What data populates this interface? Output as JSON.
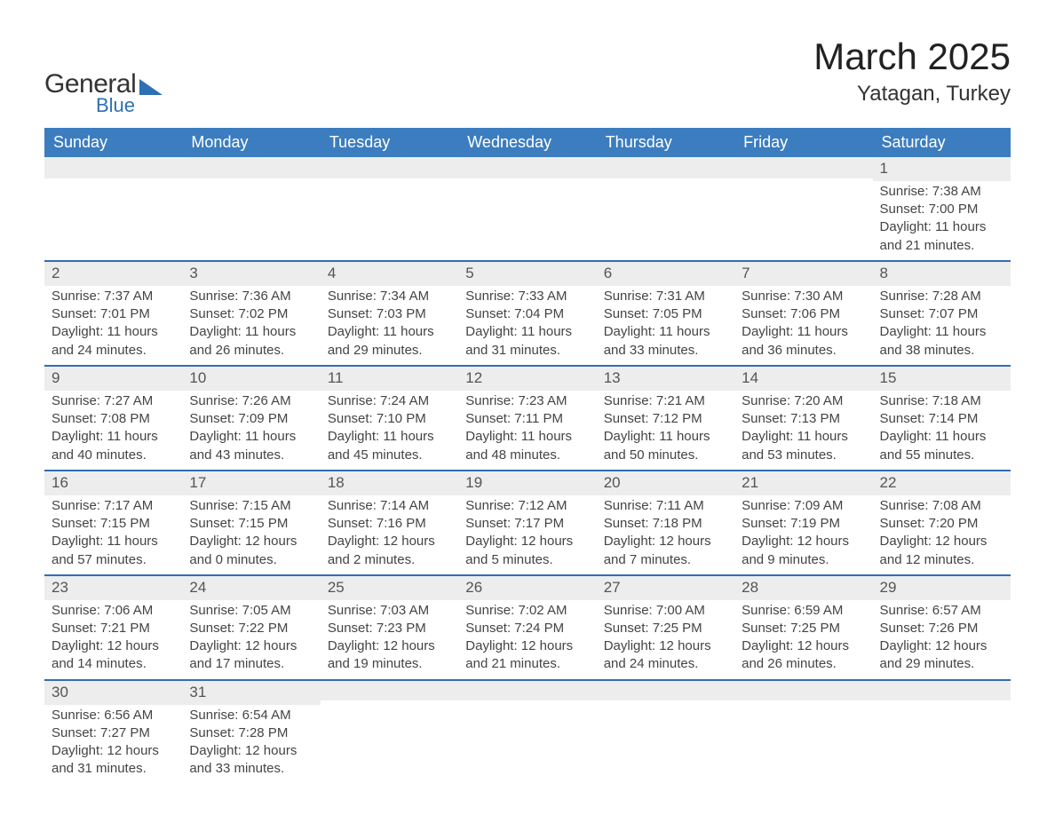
{
  "logo": {
    "text_main": "General",
    "text_sub": "Blue"
  },
  "title": "March 2025",
  "location": "Yatagan, Turkey",
  "colors": {
    "header_bg": "#3b7dbf",
    "accent": "#2f6fb3",
    "daybar_bg": "#ededed",
    "text": "#444444"
  },
  "day_headers": [
    "Sunday",
    "Monday",
    "Tuesday",
    "Wednesday",
    "Thursday",
    "Friday",
    "Saturday"
  ],
  "weeks": [
    [
      null,
      null,
      null,
      null,
      null,
      null,
      {
        "n": "1",
        "sunrise": "Sunrise: 7:38 AM",
        "sunset": "Sunset: 7:00 PM",
        "d1": "Daylight: 11 hours",
        "d2": "and 21 minutes."
      }
    ],
    [
      {
        "n": "2",
        "sunrise": "Sunrise: 7:37 AM",
        "sunset": "Sunset: 7:01 PM",
        "d1": "Daylight: 11 hours",
        "d2": "and 24 minutes."
      },
      {
        "n": "3",
        "sunrise": "Sunrise: 7:36 AM",
        "sunset": "Sunset: 7:02 PM",
        "d1": "Daylight: 11 hours",
        "d2": "and 26 minutes."
      },
      {
        "n": "4",
        "sunrise": "Sunrise: 7:34 AM",
        "sunset": "Sunset: 7:03 PM",
        "d1": "Daylight: 11 hours",
        "d2": "and 29 minutes."
      },
      {
        "n": "5",
        "sunrise": "Sunrise: 7:33 AM",
        "sunset": "Sunset: 7:04 PM",
        "d1": "Daylight: 11 hours",
        "d2": "and 31 minutes."
      },
      {
        "n": "6",
        "sunrise": "Sunrise: 7:31 AM",
        "sunset": "Sunset: 7:05 PM",
        "d1": "Daylight: 11 hours",
        "d2": "and 33 minutes."
      },
      {
        "n": "7",
        "sunrise": "Sunrise: 7:30 AM",
        "sunset": "Sunset: 7:06 PM",
        "d1": "Daylight: 11 hours",
        "d2": "and 36 minutes."
      },
      {
        "n": "8",
        "sunrise": "Sunrise: 7:28 AM",
        "sunset": "Sunset: 7:07 PM",
        "d1": "Daylight: 11 hours",
        "d2": "and 38 minutes."
      }
    ],
    [
      {
        "n": "9",
        "sunrise": "Sunrise: 7:27 AM",
        "sunset": "Sunset: 7:08 PM",
        "d1": "Daylight: 11 hours",
        "d2": "and 40 minutes."
      },
      {
        "n": "10",
        "sunrise": "Sunrise: 7:26 AM",
        "sunset": "Sunset: 7:09 PM",
        "d1": "Daylight: 11 hours",
        "d2": "and 43 minutes."
      },
      {
        "n": "11",
        "sunrise": "Sunrise: 7:24 AM",
        "sunset": "Sunset: 7:10 PM",
        "d1": "Daylight: 11 hours",
        "d2": "and 45 minutes."
      },
      {
        "n": "12",
        "sunrise": "Sunrise: 7:23 AM",
        "sunset": "Sunset: 7:11 PM",
        "d1": "Daylight: 11 hours",
        "d2": "and 48 minutes."
      },
      {
        "n": "13",
        "sunrise": "Sunrise: 7:21 AM",
        "sunset": "Sunset: 7:12 PM",
        "d1": "Daylight: 11 hours",
        "d2": "and 50 minutes."
      },
      {
        "n": "14",
        "sunrise": "Sunrise: 7:20 AM",
        "sunset": "Sunset: 7:13 PM",
        "d1": "Daylight: 11 hours",
        "d2": "and 53 minutes."
      },
      {
        "n": "15",
        "sunrise": "Sunrise: 7:18 AM",
        "sunset": "Sunset: 7:14 PM",
        "d1": "Daylight: 11 hours",
        "d2": "and 55 minutes."
      }
    ],
    [
      {
        "n": "16",
        "sunrise": "Sunrise: 7:17 AM",
        "sunset": "Sunset: 7:15 PM",
        "d1": "Daylight: 11 hours",
        "d2": "and 57 minutes."
      },
      {
        "n": "17",
        "sunrise": "Sunrise: 7:15 AM",
        "sunset": "Sunset: 7:15 PM",
        "d1": "Daylight: 12 hours",
        "d2": "and 0 minutes."
      },
      {
        "n": "18",
        "sunrise": "Sunrise: 7:14 AM",
        "sunset": "Sunset: 7:16 PM",
        "d1": "Daylight: 12 hours",
        "d2": "and 2 minutes."
      },
      {
        "n": "19",
        "sunrise": "Sunrise: 7:12 AM",
        "sunset": "Sunset: 7:17 PM",
        "d1": "Daylight: 12 hours",
        "d2": "and 5 minutes."
      },
      {
        "n": "20",
        "sunrise": "Sunrise: 7:11 AM",
        "sunset": "Sunset: 7:18 PM",
        "d1": "Daylight: 12 hours",
        "d2": "and 7 minutes."
      },
      {
        "n": "21",
        "sunrise": "Sunrise: 7:09 AM",
        "sunset": "Sunset: 7:19 PM",
        "d1": "Daylight: 12 hours",
        "d2": "and 9 minutes."
      },
      {
        "n": "22",
        "sunrise": "Sunrise: 7:08 AM",
        "sunset": "Sunset: 7:20 PM",
        "d1": "Daylight: 12 hours",
        "d2": "and 12 minutes."
      }
    ],
    [
      {
        "n": "23",
        "sunrise": "Sunrise: 7:06 AM",
        "sunset": "Sunset: 7:21 PM",
        "d1": "Daylight: 12 hours",
        "d2": "and 14 minutes."
      },
      {
        "n": "24",
        "sunrise": "Sunrise: 7:05 AM",
        "sunset": "Sunset: 7:22 PM",
        "d1": "Daylight: 12 hours",
        "d2": "and 17 minutes."
      },
      {
        "n": "25",
        "sunrise": "Sunrise: 7:03 AM",
        "sunset": "Sunset: 7:23 PM",
        "d1": "Daylight: 12 hours",
        "d2": "and 19 minutes."
      },
      {
        "n": "26",
        "sunrise": "Sunrise: 7:02 AM",
        "sunset": "Sunset: 7:24 PM",
        "d1": "Daylight: 12 hours",
        "d2": "and 21 minutes."
      },
      {
        "n": "27",
        "sunrise": "Sunrise: 7:00 AM",
        "sunset": "Sunset: 7:25 PM",
        "d1": "Daylight: 12 hours",
        "d2": "and 24 minutes."
      },
      {
        "n": "28",
        "sunrise": "Sunrise: 6:59 AM",
        "sunset": "Sunset: 7:25 PM",
        "d1": "Daylight: 12 hours",
        "d2": "and 26 minutes."
      },
      {
        "n": "29",
        "sunrise": "Sunrise: 6:57 AM",
        "sunset": "Sunset: 7:26 PM",
        "d1": "Daylight: 12 hours",
        "d2": "and 29 minutes."
      }
    ],
    [
      {
        "n": "30",
        "sunrise": "Sunrise: 6:56 AM",
        "sunset": "Sunset: 7:27 PM",
        "d1": "Daylight: 12 hours",
        "d2": "and 31 minutes."
      },
      {
        "n": "31",
        "sunrise": "Sunrise: 6:54 AM",
        "sunset": "Sunset: 7:28 PM",
        "d1": "Daylight: 12 hours",
        "d2": "and 33 minutes."
      },
      null,
      null,
      null,
      null,
      null
    ]
  ]
}
